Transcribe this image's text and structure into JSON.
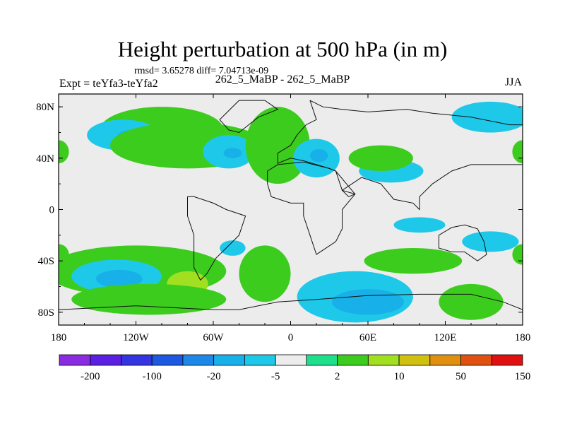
{
  "chart_data": {
    "type": "heatmap",
    "title": "Height perturbation at 500 hPa (in m)",
    "stats_text": "rmsd= 3.65278  diff= 7.04713e-09",
    "left_label": "Expt = teYfa3-teYfa2",
    "center_label": "262_5_MaBP - 262_5_MaBP",
    "right_label": "JJA",
    "x_ticks": [
      "180",
      "120W",
      "60W",
      "0",
      "60E",
      "120E",
      "180"
    ],
    "x_tick_values": [
      -180,
      -120,
      -60,
      0,
      60,
      120,
      180
    ],
    "y_ticks": [
      "80N",
      "40N",
      "0",
      "40S",
      "80S"
    ],
    "y_tick_values": [
      80,
      40,
      0,
      -40,
      -80
    ],
    "xlim": [
      -180,
      180
    ],
    "ylim": [
      -90,
      90
    ],
    "colorbar": {
      "levels": [
        -200,
        -100,
        -50,
        -20,
        -10,
        -5,
        -2,
        2,
        5,
        10,
        20,
        50,
        100,
        150,
        200
      ],
      "labels": [
        "-200",
        "-100",
        "-20",
        "-5",
        "2",
        "10",
        "50",
        "150"
      ],
      "label_positions": [
        1,
        3,
        5,
        7,
        9,
        11,
        13,
        15
      ],
      "colors": [
        "#8a2be2",
        "#5a1fe0",
        "#3434e0",
        "#1c58e0",
        "#1e88e8",
        "#18b0e8",
        "#1ec8e8",
        "#ececec",
        "#1ee08c",
        "#3ccc1e",
        "#a0e020",
        "#d0c010",
        "#e09010",
        "#e05010",
        "#e01010"
      ]
    },
    "regions": [
      {
        "name": "nh-high-lat-band",
        "cx": -100,
        "cy": 62,
        "rx": 48,
        "ry": 18,
        "cat": 2
      },
      {
        "name": "nh-low-west",
        "cx": -130,
        "cy": 58,
        "rx": 28,
        "ry": 12,
        "cat": -1
      },
      {
        "name": "nh-low-west-core",
        "cx": -123,
        "cy": 56,
        "rx": 12,
        "ry": 6,
        "cat": -2
      },
      {
        "name": "nh-green-arc",
        "cx": -80,
        "cy": 50,
        "rx": 60,
        "ry": 18,
        "cat": 2
      },
      {
        "name": "nh-ring-low",
        "cx": -48,
        "cy": 45,
        "rx": 20,
        "ry": 13,
        "cat": -1
      },
      {
        "name": "nh-ring-core",
        "cx": -45,
        "cy": 44,
        "rx": 7,
        "ry": 4,
        "cat": -2
      },
      {
        "name": "atlantic-green",
        "cx": -10,
        "cy": 50,
        "rx": 25,
        "ry": 30,
        "cat": 2
      },
      {
        "name": "west-edge-green",
        "cx": -180,
        "cy": 45,
        "rx": 8,
        "ry": 9,
        "cat": 2
      },
      {
        "name": "east-edge-green",
        "cx": 180,
        "cy": 45,
        "rx": 8,
        "ry": 9,
        "cat": 2
      },
      {
        "name": "europe-low",
        "cx": 20,
        "cy": 40,
        "rx": 18,
        "ry": 15,
        "cat": -1
      },
      {
        "name": "europe-low-core",
        "cx": 22,
        "cy": 42,
        "rx": 7,
        "ry": 5,
        "cat": -2
      },
      {
        "name": "asia-low",
        "cx": 78,
        "cy": 30,
        "rx": 25,
        "ry": 9,
        "cat": -1
      },
      {
        "name": "asia-green",
        "cx": 70,
        "cy": 40,
        "rx": 25,
        "ry": 10,
        "cat": 2
      },
      {
        "name": "npac-low",
        "cx": 155,
        "cy": 72,
        "rx": 30,
        "ry": 12,
        "cat": -1
      },
      {
        "name": "sh-green-band",
        "cx": -120,
        "cy": -48,
        "rx": 70,
        "ry": 20,
        "cat": 2
      },
      {
        "name": "sh-low-west",
        "cx": -135,
        "cy": -52,
        "rx": 35,
        "ry": 13,
        "cat": -1
      },
      {
        "name": "sh-low-west-core",
        "cx": -133,
        "cy": -54,
        "rx": 18,
        "ry": 7,
        "cat": -2
      },
      {
        "name": "sh-yellow-patch",
        "cx": -80,
        "cy": -58,
        "rx": 16,
        "ry": 10,
        "cat": 3
      },
      {
        "name": "sh-green-atlantic",
        "cx": -20,
        "cy": -50,
        "rx": 20,
        "ry": 22,
        "cat": 2
      },
      {
        "name": "sh-green-east",
        "cx": 95,
        "cy": -40,
        "rx": 38,
        "ry": 10,
        "cat": 2
      },
      {
        "name": "sh-green-low",
        "cx": -110,
        "cy": -70,
        "rx": 60,
        "ry": 12,
        "cat": 2
      },
      {
        "name": "sh-big-low",
        "cx": 50,
        "cy": -68,
        "rx": 45,
        "ry": 20,
        "cat": -1
      },
      {
        "name": "sh-big-low-core",
        "cx": 60,
        "cy": -72,
        "rx": 28,
        "ry": 10,
        "cat": -2
      },
      {
        "name": "sh-green-right",
        "cx": 140,
        "cy": -72,
        "rx": 25,
        "ry": 14,
        "cat": 2
      },
      {
        "name": "sh-green-edge-left",
        "cx": -180,
        "cy": -35,
        "rx": 8,
        "ry": 8,
        "cat": 2
      },
      {
        "name": "sh-green-edge-right",
        "cx": 180,
        "cy": -35,
        "rx": 8,
        "ry": 8,
        "cat": 2
      },
      {
        "name": "sh-low-pac",
        "cx": -45,
        "cy": -30,
        "rx": 10,
        "ry": 6,
        "cat": -1
      },
      {
        "name": "sh-low-east-small",
        "cx": 100,
        "cy": -12,
        "rx": 20,
        "ry": 6,
        "cat": -1
      },
      {
        "name": "sh-low-east2",
        "cx": 155,
        "cy": -25,
        "rx": 22,
        "ry": 8,
        "cat": -1
      }
    ]
  }
}
